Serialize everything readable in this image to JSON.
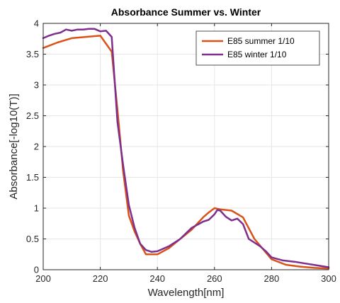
{
  "chart_data": {
    "type": "line",
    "title": "Absorbance Summer vs. Winter",
    "xlabel": "Wavelength[nm]",
    "ylabel": "Absorbance[-log10(T)]",
    "xlim": [
      200,
      300
    ],
    "ylim": [
      0,
      4
    ],
    "xticks": [
      200,
      220,
      240,
      260,
      280,
      300
    ],
    "yticks": [
      0,
      0.5,
      1,
      1.5,
      2,
      2.5,
      3,
      3.5,
      4
    ],
    "xtick_labels": [
      "200",
      "220",
      "240",
      "260",
      "280",
      "300"
    ],
    "ytick_labels": [
      "0",
      "0.5",
      "1",
      "1.5",
      "2",
      "2.5",
      "3",
      "3.5",
      "4"
    ],
    "grid": true,
    "legend_position": "top-right",
    "series": [
      {
        "name": "E85 summer 1/10",
        "color": "#D95319",
        "x": [
          200,
          205,
          210,
          215,
          220,
          224,
          226,
          228,
          230,
          232,
          234,
          236,
          238,
          240,
          244,
          248,
          252,
          256,
          258,
          260,
          262,
          264,
          266,
          270,
          274,
          280,
          285,
          290,
          295,
          300
        ],
        "y": [
          3.6,
          3.69,
          3.76,
          3.78,
          3.8,
          3.54,
          2.6,
          1.6,
          0.88,
          0.62,
          0.42,
          0.25,
          0.25,
          0.25,
          0.35,
          0.5,
          0.65,
          0.85,
          0.93,
          1.0,
          0.98,
          0.97,
          0.96,
          0.85,
          0.5,
          0.17,
          0.08,
          0.05,
          0.03,
          0.02
        ]
      },
      {
        "name": "E85 winter 1/10",
        "color": "#7E2F8E",
        "x": [
          200,
          202,
          204,
          206,
          208,
          210,
          212,
          214,
          216,
          218,
          220,
          222,
          224,
          226,
          228,
          230,
          232,
          234,
          236,
          238,
          240,
          244,
          248,
          252,
          254,
          256,
          258,
          260,
          261,
          262,
          264,
          266,
          268,
          270,
          272,
          276,
          278,
          280,
          284,
          288,
          292,
          296,
          300
        ],
        "y": [
          3.76,
          3.8,
          3.83,
          3.85,
          3.9,
          3.88,
          3.9,
          3.9,
          3.91,
          3.91,
          3.87,
          3.88,
          3.78,
          2.4,
          1.7,
          1.05,
          0.68,
          0.42,
          0.32,
          0.29,
          0.3,
          0.38,
          0.5,
          0.68,
          0.73,
          0.78,
          0.81,
          0.9,
          0.97,
          0.96,
          0.86,
          0.8,
          0.83,
          0.74,
          0.5,
          0.38,
          0.3,
          0.2,
          0.15,
          0.13,
          0.1,
          0.07,
          0.04
        ]
      }
    ]
  }
}
